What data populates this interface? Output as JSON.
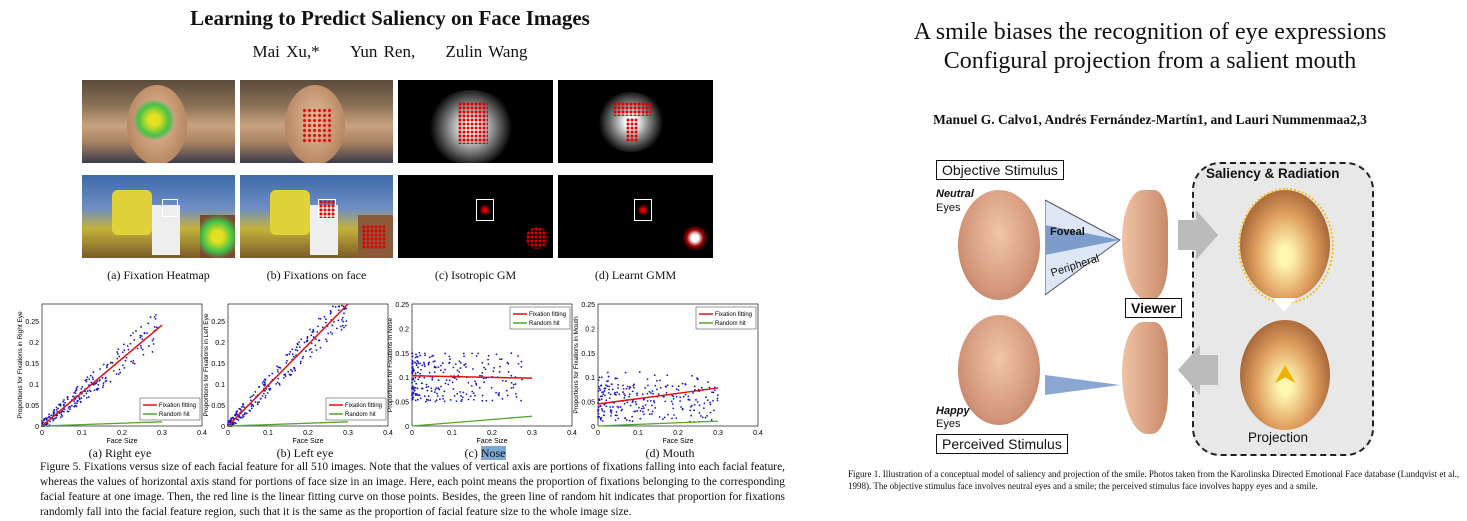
{
  "left_paper": {
    "title": "Learning to Predict Saliency on Face Images",
    "authors": [
      "Mai Xu,*",
      "Yun Ren,",
      "Zulin Wang"
    ],
    "subfig_captions": [
      "(a) Fixation Heatmap",
      "(b) Fixations on face",
      "(c) Isotropic GM",
      "(d) Learnt GMM"
    ],
    "plots": [
      {
        "caption_prefix": "(a)",
        "caption": "Right eye",
        "ylabel": "Proportions for Fixations in Right Eye",
        "xlabel": "Face Size",
        "yticks": [
          "0",
          "0.05",
          "0.1",
          "0.15",
          "0.2",
          "0.25"
        ],
        "xticks": [
          "0",
          "0.1",
          "0.2",
          "0.3",
          "0.4"
        ],
        "ymax": 0.29,
        "legend": [
          "Fixation fitting",
          "Random hit"
        ],
        "legend_pos": "bottom-right",
        "fit": [
          [
            0,
            0.0
          ],
          [
            0.3,
            0.24
          ]
        ],
        "random": [
          [
            0,
            0.0
          ],
          [
            0.3,
            0.01
          ]
        ]
      },
      {
        "caption_prefix": "(b)",
        "caption": "Left eye",
        "ylabel": "Proportions for Fixations in Left Eye",
        "xlabel": "Face Size",
        "yticks": [
          "0",
          "0.05",
          "0.1",
          "0.15",
          "0.2",
          "0.25"
        ],
        "xticks": [
          "0",
          "0.1",
          "0.2",
          "0.3",
          "0.4"
        ],
        "ymax": 0.29,
        "legend": [
          "Fixation fitting",
          "Random hit"
        ],
        "legend_pos": "bottom-right",
        "fit": [
          [
            0,
            0.0
          ],
          [
            0.3,
            0.29
          ]
        ],
        "random": [
          [
            0,
            0.0
          ],
          [
            0.3,
            0.01
          ]
        ]
      },
      {
        "caption_prefix": "(c)",
        "caption": "Nose",
        "ylabel": "Proportions for Fixations in Nose",
        "xlabel": "Face Size",
        "yticks": [
          "0",
          "0.05",
          "0.1",
          "0.15",
          "0.2",
          "0.25"
        ],
        "xticks": [
          "0",
          "0.1",
          "0.2",
          "0.3",
          "0.4"
        ],
        "ymax": 0.25,
        "legend": [
          "Fixation fitting",
          "Random hit"
        ],
        "legend_pos": "top-right",
        "fit": [
          [
            0,
            0.103
          ],
          [
            0.3,
            0.098
          ]
        ],
        "random": [
          [
            0,
            0.0
          ],
          [
            0.3,
            0.02
          ]
        ]
      },
      {
        "caption_prefix": "(d)",
        "caption": "Mouth",
        "ylabel": "Proportions for Fixations in Mouth",
        "xlabel": "Face Size",
        "yticks": [
          "0",
          "0.05",
          "0.1",
          "0.15",
          "0.2",
          "0.25"
        ],
        "xticks": [
          "0",
          "0.1",
          "0.2",
          "0.3",
          "0.4"
        ],
        "ymax": 0.25,
        "legend": [
          "Fixation fitting",
          "Random hit"
        ],
        "legend_pos": "top-right",
        "fit": [
          [
            0,
            0.045
          ],
          [
            0.3,
            0.078
          ]
        ],
        "random": [
          [
            0,
            0.0
          ],
          [
            0.3,
            0.01
          ]
        ]
      }
    ],
    "figure_caption": "Figure 5. Fixations versus size of each facial feature for all 510 images. Note that the values of vertical axis are portions of fixations falling into each facial feature, whereas the values of horizontal axis stand for portions of face size in an image. Here, each point means the proportion of fixations belonging to the corresponding facial feature at one image. Then, the red line is the linear fitting curve on those points. Besides, the green line of random hit indicates that proportion for fixations randomly fall into the facial feature region, such that it is the same as the proportion of facial feature size to the whole image size."
  },
  "right_paper": {
    "title_line1": "A smile biases the recognition of eye expressions",
    "title_line2": "Configural projection from a salient mouth",
    "authors": "Manuel G. Calvo1, Andrés Fernández-Martín1, and Lauri Nummenmaa2,3",
    "diagram": {
      "objective_stimulus": "Objective Stimulus",
      "neutral": "Neutral",
      "eyes_top": "Eyes",
      "foveal": "Foveal",
      "peripheral": "Peripheral",
      "viewer": "Viewer",
      "saliency_radiation": "Saliency & Radiation",
      "projection": "Projection",
      "happy": "Happy",
      "eyes_bottom": "Eyes",
      "perceived_stimulus": "Perceived Stimulus"
    },
    "figure_caption": "Figure 1. Illustration of a conceptual model of saliency and projection of the smile. Photos taken from the Karolinska Directed Emotional Face database (Lundqvist et al., 1998). The objective stimulus face involves neutral eyes and a smile; the perceived stimulus face involves happy eyes and a smile."
  },
  "colors": {
    "fit_red": "#e01010",
    "random_green": "#52a52a",
    "points_blue": "#1515c8",
    "highlight": "#7aa7d8"
  },
  "chart_data": [
    {
      "type": "scatter",
      "title": "(a) Right eye",
      "xlabel": "Face Size",
      "ylabel": "Proportions for Fixations in Right Eye",
      "xlim": [
        0,
        0.4
      ],
      "ylim": [
        0,
        0.29
      ],
      "series": [
        {
          "name": "Fixation fitting",
          "x": [
            0,
            0.3
          ],
          "y": [
            0,
            0.24
          ]
        },
        {
          "name": "Random hit",
          "x": [
            0,
            0.3
          ],
          "y": [
            0,
            0.01
          ]
        }
      ]
    },
    {
      "type": "scatter",
      "title": "(b) Left eye",
      "xlabel": "Face Size",
      "ylabel": "Proportions for Fixations in Left Eye",
      "xlim": [
        0,
        0.4
      ],
      "ylim": [
        0,
        0.29
      ],
      "series": [
        {
          "name": "Fixation fitting",
          "x": [
            0,
            0.3
          ],
          "y": [
            0,
            0.29
          ]
        },
        {
          "name": "Random hit",
          "x": [
            0,
            0.3
          ],
          "y": [
            0,
            0.01
          ]
        }
      ]
    },
    {
      "type": "scatter",
      "title": "(c) Nose",
      "xlabel": "Face Size",
      "ylabel": "Proportions for Fixations in Nose",
      "xlim": [
        0,
        0.4
      ],
      "ylim": [
        0,
        0.25
      ],
      "series": [
        {
          "name": "Fixation fitting",
          "x": [
            0,
            0.3
          ],
          "y": [
            0.103,
            0.098
          ]
        },
        {
          "name": "Random hit",
          "x": [
            0,
            0.3
          ],
          "y": [
            0,
            0.02
          ]
        }
      ]
    },
    {
      "type": "scatter",
      "title": "(d) Mouth",
      "xlabel": "Face Size",
      "ylabel": "Proportions for Fixations in Mouth",
      "xlim": [
        0,
        0.4
      ],
      "ylim": [
        0,
        0.25
      ],
      "series": [
        {
          "name": "Fixation fitting",
          "x": [
            0,
            0.3
          ],
          "y": [
            0.045,
            0.078
          ]
        },
        {
          "name": "Random hit",
          "x": [
            0,
            0.3
          ],
          "y": [
            0,
            0.01
          ]
        }
      ]
    }
  ]
}
